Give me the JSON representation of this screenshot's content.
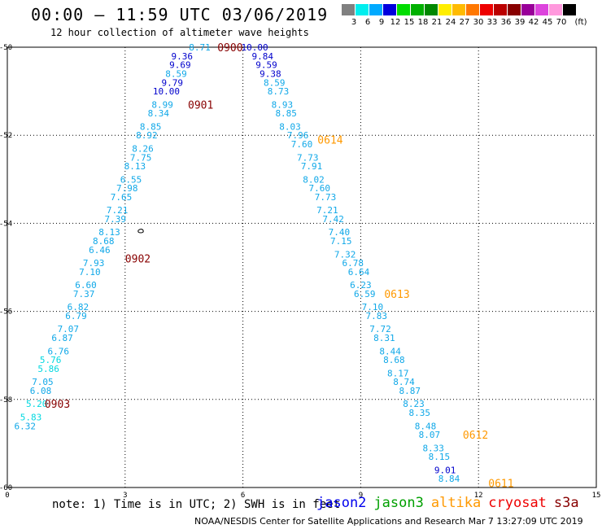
{
  "header": {
    "title": "00:00 – 11:59 UTC 03/06/2019",
    "subtitle": "12 hour collection of altimeter wave heights"
  },
  "color_scale": {
    "unit": "(ft)",
    "bins": [
      {
        "label": "3",
        "color": "#808080"
      },
      {
        "label": "6",
        "color": "#00eeee"
      },
      {
        "label": "9",
        "color": "#00aaff"
      },
      {
        "label": "12",
        "color": "#0000dd"
      },
      {
        "label": "15",
        "color": "#00dd00"
      },
      {
        "label": "18",
        "color": "#00b000"
      },
      {
        "label": "21",
        "color": "#008800"
      },
      {
        "label": "24",
        "color": "#ffee00"
      },
      {
        "label": "27",
        "color": "#ffbb00"
      },
      {
        "label": "30",
        "color": "#ff7700"
      },
      {
        "label": "33",
        "color": "#ee0000"
      },
      {
        "label": "36",
        "color": "#bb0000"
      },
      {
        "label": "39",
        "color": "#880000"
      },
      {
        "label": "42",
        "color": "#990099"
      },
      {
        "label": "45",
        "color": "#dd44dd"
      },
      {
        "label": "70",
        "color": "#ff99dd"
      },
      {
        "label": "",
        "color": "#000000"
      }
    ]
  },
  "map": {
    "lon_range": [
      0,
      15
    ],
    "lat_range": [
      -60,
      -50
    ],
    "x_ticks": [
      "0",
      "3",
      "6",
      "9",
      "12",
      "15"
    ],
    "y_ticks": [
      "-50",
      "-52",
      "-54",
      "-56",
      "-58",
      "-60"
    ],
    "grid": true,
    "land_feature": "small island outline near 3.4E, -54.4",
    "tracks": [
      {
        "satellite": "cryosat",
        "color_scheme": "swh-scale",
        "time_labels": [
          {
            "text": "0900",
            "lon": 5.35,
            "lat": -50.0
          },
          {
            "text": "0901",
            "lon": 4.6,
            "lat": -51.3
          },
          {
            "text": "0902",
            "lon": 3.0,
            "lat": -54.8
          },
          {
            "text": "0903",
            "lon": 0.95,
            "lat": -58.1
          }
        ],
        "points": [
          {
            "lon": 4.9,
            "lat": -50.0,
            "swh": "8.71"
          },
          {
            "lon": 4.45,
            "lat": -50.2,
            "swh": "9.36"
          },
          {
            "lon": 4.4,
            "lat": -50.4,
            "swh": "9.69"
          },
          {
            "lon": 4.3,
            "lat": -50.6,
            "swh": "8.59"
          },
          {
            "lon": 4.2,
            "lat": -50.8,
            "swh": "9.79"
          },
          {
            "lon": 4.05,
            "lat": -51.0,
            "swh": "10.00"
          },
          {
            "lon": 3.95,
            "lat": -51.3,
            "swh": "8.99"
          },
          {
            "lon": 3.85,
            "lat": -51.5,
            "swh": "8.34"
          },
          {
            "lon": 3.65,
            "lat": -51.8,
            "swh": "8.85"
          },
          {
            "lon": 3.55,
            "lat": -52.0,
            "swh": "8.92"
          },
          {
            "lon": 3.45,
            "lat": -52.3,
            "swh": "8.26"
          },
          {
            "lon": 3.4,
            "lat": -52.5,
            "swh": "7.75"
          },
          {
            "lon": 3.25,
            "lat": -52.7,
            "swh": "8.13"
          },
          {
            "lon": 3.15,
            "lat": -53.0,
            "swh": "6.55"
          },
          {
            "lon": 3.05,
            "lat": -53.2,
            "swh": "7.98"
          },
          {
            "lon": 2.9,
            "lat": -53.4,
            "swh": "7.65"
          },
          {
            "lon": 2.8,
            "lat": -53.7,
            "swh": "7.21"
          },
          {
            "lon": 2.75,
            "lat": -53.9,
            "swh": "7.39"
          },
          {
            "lon": 2.6,
            "lat": -54.2,
            "swh": "8.13"
          },
          {
            "lon": 2.45,
            "lat": -54.4,
            "swh": "8.68"
          },
          {
            "lon": 2.35,
            "lat": -54.6,
            "swh": "6.46"
          },
          {
            "lon": 2.2,
            "lat": -54.9,
            "swh": "7.93"
          },
          {
            "lon": 2.1,
            "lat": -55.1,
            "swh": "7.10"
          },
          {
            "lon": 2.0,
            "lat": -55.4,
            "swh": "6.60"
          },
          {
            "lon": 1.95,
            "lat": -55.6,
            "swh": "7.37"
          },
          {
            "lon": 1.8,
            "lat": -55.9,
            "swh": "6.82"
          },
          {
            "lon": 1.75,
            "lat": -56.1,
            "swh": "6.79"
          },
          {
            "lon": 1.55,
            "lat": -56.4,
            "swh": "7.07"
          },
          {
            "lon": 1.4,
            "lat": -56.6,
            "swh": "6.87"
          },
          {
            "lon": 1.3,
            "lat": -56.9,
            "swh": "6.76"
          },
          {
            "lon": 1.1,
            "lat": -57.1,
            "swh": "5.76"
          },
          {
            "lon": 1.05,
            "lat": -57.3,
            "swh": "5.86"
          },
          {
            "lon": 0.9,
            "lat": -57.6,
            "swh": "7.05"
          },
          {
            "lon": 0.85,
            "lat": -57.8,
            "swh": "6.08"
          },
          {
            "lon": 0.75,
            "lat": -58.1,
            "swh": "5.20"
          },
          {
            "lon": 0.6,
            "lat": -58.4,
            "swh": "5.83"
          },
          {
            "lon": 0.45,
            "lat": -58.6,
            "swh": "6.32"
          }
        ]
      },
      {
        "satellite": "altika",
        "color_scheme": "swh-scale",
        "time_labels": [
          {
            "text": "0614",
            "lon": 7.9,
            "lat": -52.1
          },
          {
            "text": "0613",
            "lon": 9.6,
            "lat": -55.6
          },
          {
            "text": "0612",
            "lon": 11.6,
            "lat": -58.8
          },
          {
            "text": "0611",
            "lon": 12.25,
            "lat": -59.9
          }
        ],
        "points": [
          {
            "lon": 6.3,
            "lat": -50.0,
            "swh": "10.00"
          },
          {
            "lon": 6.5,
            "lat": -50.2,
            "swh": "9.84"
          },
          {
            "lon": 6.6,
            "lat": -50.4,
            "swh": "9.59"
          },
          {
            "lon": 6.7,
            "lat": -50.6,
            "swh": "9.38"
          },
          {
            "lon": 6.8,
            "lat": -50.8,
            "swh": "8.59"
          },
          {
            "lon": 6.9,
            "lat": -51.0,
            "swh": "8.73"
          },
          {
            "lon": 7.0,
            "lat": -51.3,
            "swh": "8.93"
          },
          {
            "lon": 7.1,
            "lat": -51.5,
            "swh": "8.85"
          },
          {
            "lon": 7.2,
            "lat": -51.8,
            "swh": "8.03"
          },
          {
            "lon": 7.4,
            "lat": -52.0,
            "swh": "7.96"
          },
          {
            "lon": 7.5,
            "lat": -52.2,
            "swh": "7.60"
          },
          {
            "lon": 7.65,
            "lat": -52.5,
            "swh": "7.73"
          },
          {
            "lon": 7.75,
            "lat": -52.7,
            "swh": "7.91"
          },
          {
            "lon": 7.8,
            "lat": -53.0,
            "swh": "8.02"
          },
          {
            "lon": 7.95,
            "lat": -53.2,
            "swh": "7.60"
          },
          {
            "lon": 8.1,
            "lat": -53.4,
            "swh": "7.73"
          },
          {
            "lon": 8.15,
            "lat": -53.7,
            "swh": "7.21"
          },
          {
            "lon": 8.3,
            "lat": -53.9,
            "swh": "7.42"
          },
          {
            "lon": 8.45,
            "lat": -54.2,
            "swh": "7.40"
          },
          {
            "lon": 8.5,
            "lat": -54.4,
            "swh": "7.15"
          },
          {
            "lon": 8.6,
            "lat": -54.7,
            "swh": "7.32"
          },
          {
            "lon": 8.8,
            "lat": -54.9,
            "swh": "6.78"
          },
          {
            "lon": 8.95,
            "lat": -55.1,
            "swh": "6.64"
          },
          {
            "lon": 9.0,
            "lat": -55.4,
            "swh": "6.23"
          },
          {
            "lon": 9.1,
            "lat": -55.6,
            "swh": "6.59"
          },
          {
            "lon": 9.3,
            "lat": -55.9,
            "swh": "7.10"
          },
          {
            "lon": 9.4,
            "lat": -56.1,
            "swh": "7.83"
          },
          {
            "lon": 9.5,
            "lat": -56.4,
            "swh": "7.72"
          },
          {
            "lon": 9.6,
            "lat": -56.6,
            "swh": "8.31"
          },
          {
            "lon": 9.75,
            "lat": -56.9,
            "swh": "8.44"
          },
          {
            "lon": 9.85,
            "lat": -57.1,
            "swh": "8.68"
          },
          {
            "lon": 9.95,
            "lat": -57.4,
            "swh": "8.17"
          },
          {
            "lon": 10.1,
            "lat": -57.6,
            "swh": "8.74"
          },
          {
            "lon": 10.25,
            "lat": -57.8,
            "swh": "8.87"
          },
          {
            "lon": 10.35,
            "lat": -58.1,
            "swh": "8.23"
          },
          {
            "lon": 10.5,
            "lat": -58.3,
            "swh": "8.35"
          },
          {
            "lon": 10.65,
            "lat": -58.6,
            "swh": "8.48"
          },
          {
            "lon": 10.75,
            "lat": -58.8,
            "swh": "8.07"
          },
          {
            "lon": 10.85,
            "lat": -59.1,
            "swh": "8.33"
          },
          {
            "lon": 11.0,
            "lat": -59.3,
            "swh": "8.15"
          },
          {
            "lon": 11.15,
            "lat": -59.6,
            "swh": "9.01"
          },
          {
            "lon": 11.25,
            "lat": -59.8,
            "swh": "8.84"
          }
        ]
      }
    ]
  },
  "footer": {
    "note": "note:  1) Time is in UTC;  2) SWH is in feet",
    "legend": [
      {
        "name": "jason2",
        "color": "#0000ee"
      },
      {
        "name": "jason3",
        "color": "#00a000"
      },
      {
        "name": "altika",
        "color": "#ff9900"
      },
      {
        "name": "cryosat",
        "color": "#ee0000"
      },
      {
        "name": "s3a",
        "color": "#880000"
      }
    ],
    "credit": "NOAA/NESDIS Center for Satellite Applications and Research    Mar  7 13:27:09 UTC 2019"
  }
}
